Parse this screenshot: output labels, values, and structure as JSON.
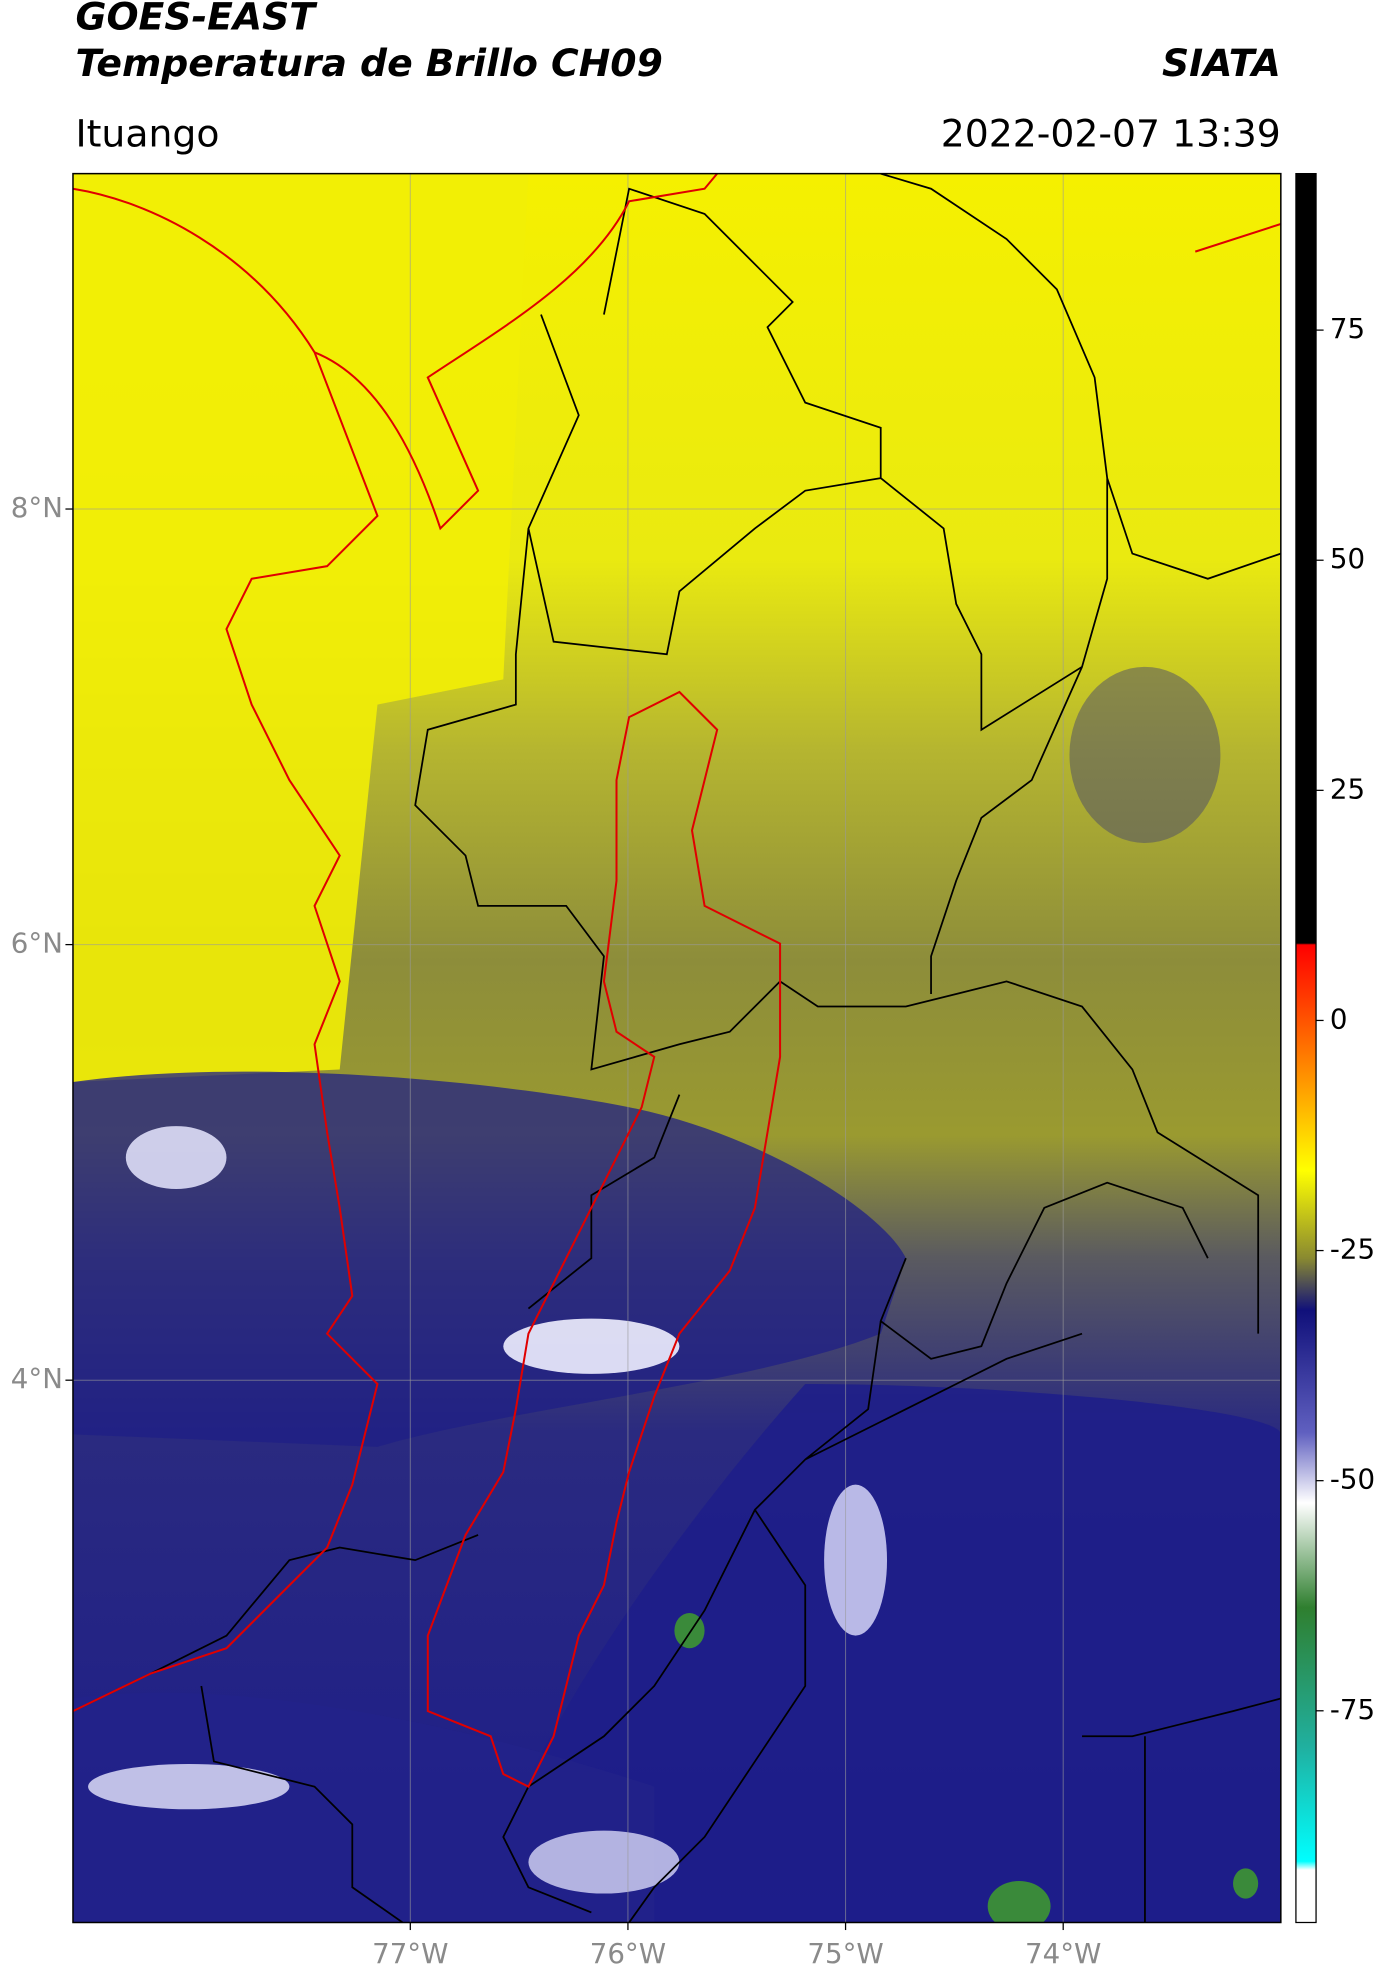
{
  "header": {
    "title": "GOES-EAST",
    "subtitle": "Temperatura de Brillo CH09",
    "source": "SIATA",
    "location": "Ituango",
    "timestamp": "2022-02-07 13:39"
  },
  "map": {
    "xlim": [
      -78.55,
      -73.0
    ],
    "ylim": [
      1.51,
      9.54
    ],
    "xticks": [
      {
        "value": -77,
        "label": "77°W"
      },
      {
        "value": -76,
        "label": "76°W"
      },
      {
        "value": -75,
        "label": "75°W"
      },
      {
        "value": -74,
        "label": "74°W"
      }
    ],
    "yticks": [
      {
        "value": 8,
        "label": "8°N"
      },
      {
        "value": 6,
        "label": "6°N"
      },
      {
        "value": 4,
        "label": "4°N"
      }
    ]
  },
  "colorbar": {
    "ylim": [
      -98,
      92
    ],
    "yticks": [
      -75,
      -50,
      -25,
      0,
      25,
      50,
      75
    ]
  }
}
